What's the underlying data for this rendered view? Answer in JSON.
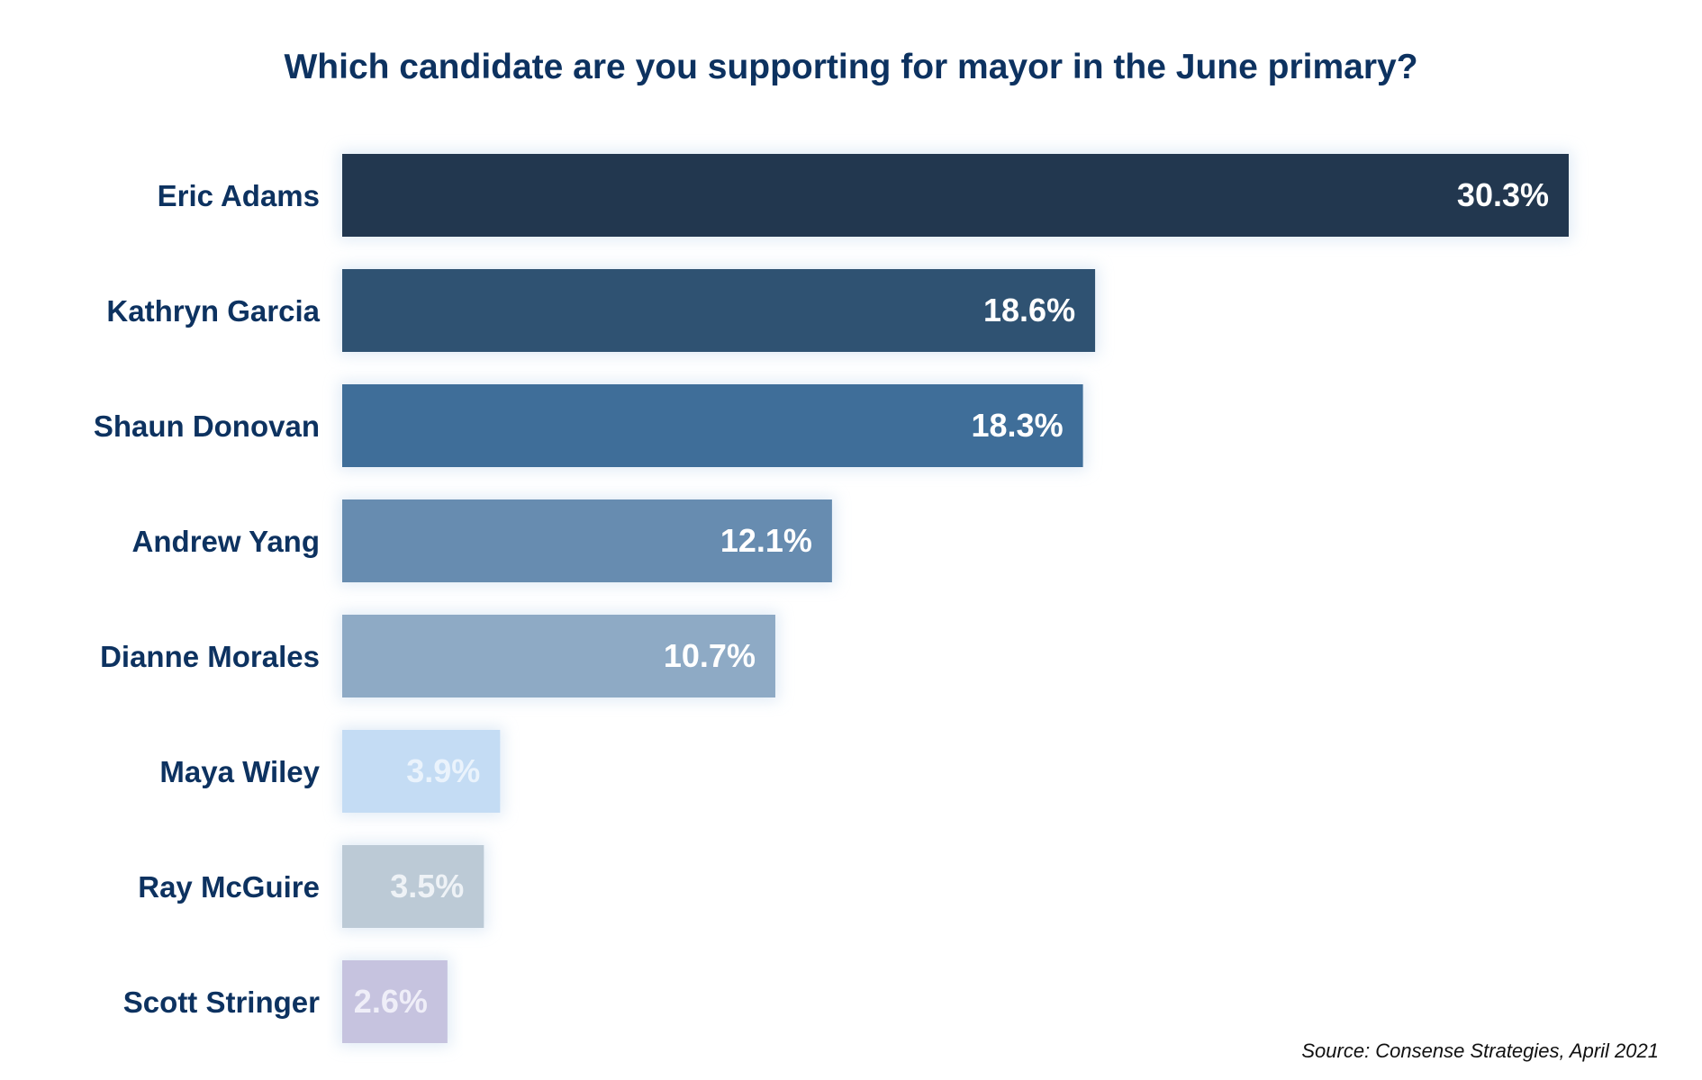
{
  "chart_data": {
    "type": "bar",
    "orientation": "horizontal",
    "title": "Which candidate are you supporting for mayor in the June primary?",
    "categories": [
      "Eric Adams",
      "Kathryn Garcia",
      "Shaun Donovan",
      "Andrew Yang",
      "Dianne Morales",
      "Maya Wiley",
      "Ray McGuire",
      "Scott Stringer"
    ],
    "values": [
      30.3,
      18.6,
      18.3,
      12.1,
      10.7,
      3.9,
      3.5,
      2.6
    ],
    "value_labels": [
      "30.3%",
      "18.6%",
      "18.3%",
      "12.1%",
      "10.7%",
      "3.9%",
      "3.5%",
      "2.6%"
    ],
    "colors": [
      "#22374f",
      "#2f5272",
      "#3f6e99",
      "#678cb0",
      "#8eaac5",
      "#c4dcf4",
      "#bccad6",
      "#c6c3df"
    ],
    "label_colors": [
      "#ffffff",
      "#ffffff",
      "#ffffff",
      "#ffffff",
      "#ffffff",
      "#eaf3fc",
      "#eef2f6",
      "#efeef8"
    ],
    "xlim": [
      0,
      30.3
    ],
    "grid": false,
    "legend": "none",
    "xlabel": "",
    "ylabel": "",
    "source": "Source: Consense Strategies, April 2021"
  }
}
